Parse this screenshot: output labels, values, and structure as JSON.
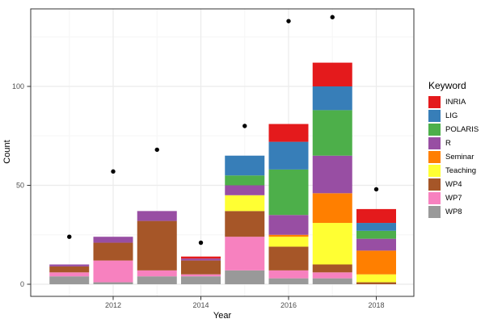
{
  "chart_data": {
    "type": "bar",
    "stacked": true,
    "title": "",
    "xlabel": "Year",
    "ylabel": "Count",
    "legend_title": "Keyword",
    "legend_position": "right",
    "grid": true,
    "background": "#ffffff",
    "panel_border_color": "#333333",
    "grid_major_color": "#ebebeb",
    "grid_minor_color": "#f5f5f5",
    "tick_label_color": "#4d4d4d",
    "categories": [
      2011,
      2012,
      2013,
      2014,
      2015,
      2016,
      2017,
      2018
    ],
    "x_tick_labels": [
      "2012",
      "2014",
      "2016",
      "2018"
    ],
    "x_tick_years": [
      2012,
      2014,
      2016,
      2018
    ],
    "y_tick_labels": [
      "0",
      "50",
      "100"
    ],
    "y_tick_values": [
      0,
      50,
      100
    ],
    "y_minor_values": [
      25,
      75,
      125
    ],
    "x_minor_years": [
      2011,
      2013,
      2015,
      2017
    ],
    "ylim": [
      -6.5,
      139
    ],
    "series": [
      {
        "name": "INRIA",
        "color": "#e41a1c",
        "values": [
          0,
          0,
          0,
          1,
          0,
          9,
          12,
          7
        ]
      },
      {
        "name": "LIG",
        "color": "#377eb8",
        "values": [
          0,
          0,
          0,
          0,
          10,
          14,
          12,
          4
        ]
      },
      {
        "name": "POLARIS",
        "color": "#4daf4a",
        "values": [
          0,
          0,
          0,
          0,
          5,
          23,
          23,
          4
        ]
      },
      {
        "name": "R",
        "color": "#984ea3",
        "values": [
          1,
          3,
          5,
          1,
          5,
          10,
          19,
          6
        ]
      },
      {
        "name": "Seminar",
        "color": "#ff7f00",
        "values": [
          0,
          0,
          0,
          0,
          0,
          1,
          15,
          12
        ]
      },
      {
        "name": "Teaching",
        "color": "#ffff33",
        "values": [
          0,
          0,
          0,
          0,
          8,
          5,
          21,
          4
        ]
      },
      {
        "name": "WP4",
        "color": "#a65628",
        "values": [
          3,
          9,
          25,
          7,
          13,
          12,
          4,
          1
        ]
      },
      {
        "name": "WP7",
        "color": "#f781bf",
        "values": [
          2,
          11,
          3,
          1,
          17,
          4,
          3,
          0
        ]
      },
      {
        "name": "WP8",
        "color": "#999999",
        "values": [
          4,
          1,
          4,
          4,
          7,
          3,
          3,
          0
        ]
      }
    ],
    "totals": [
      10,
      24,
      37,
      14,
      65,
      81,
      112,
      38
    ],
    "points": {
      "name": "yearly-total-dots",
      "color": "#000000",
      "values": [
        24,
        57,
        68,
        21,
        80,
        133,
        135,
        48
      ]
    }
  }
}
